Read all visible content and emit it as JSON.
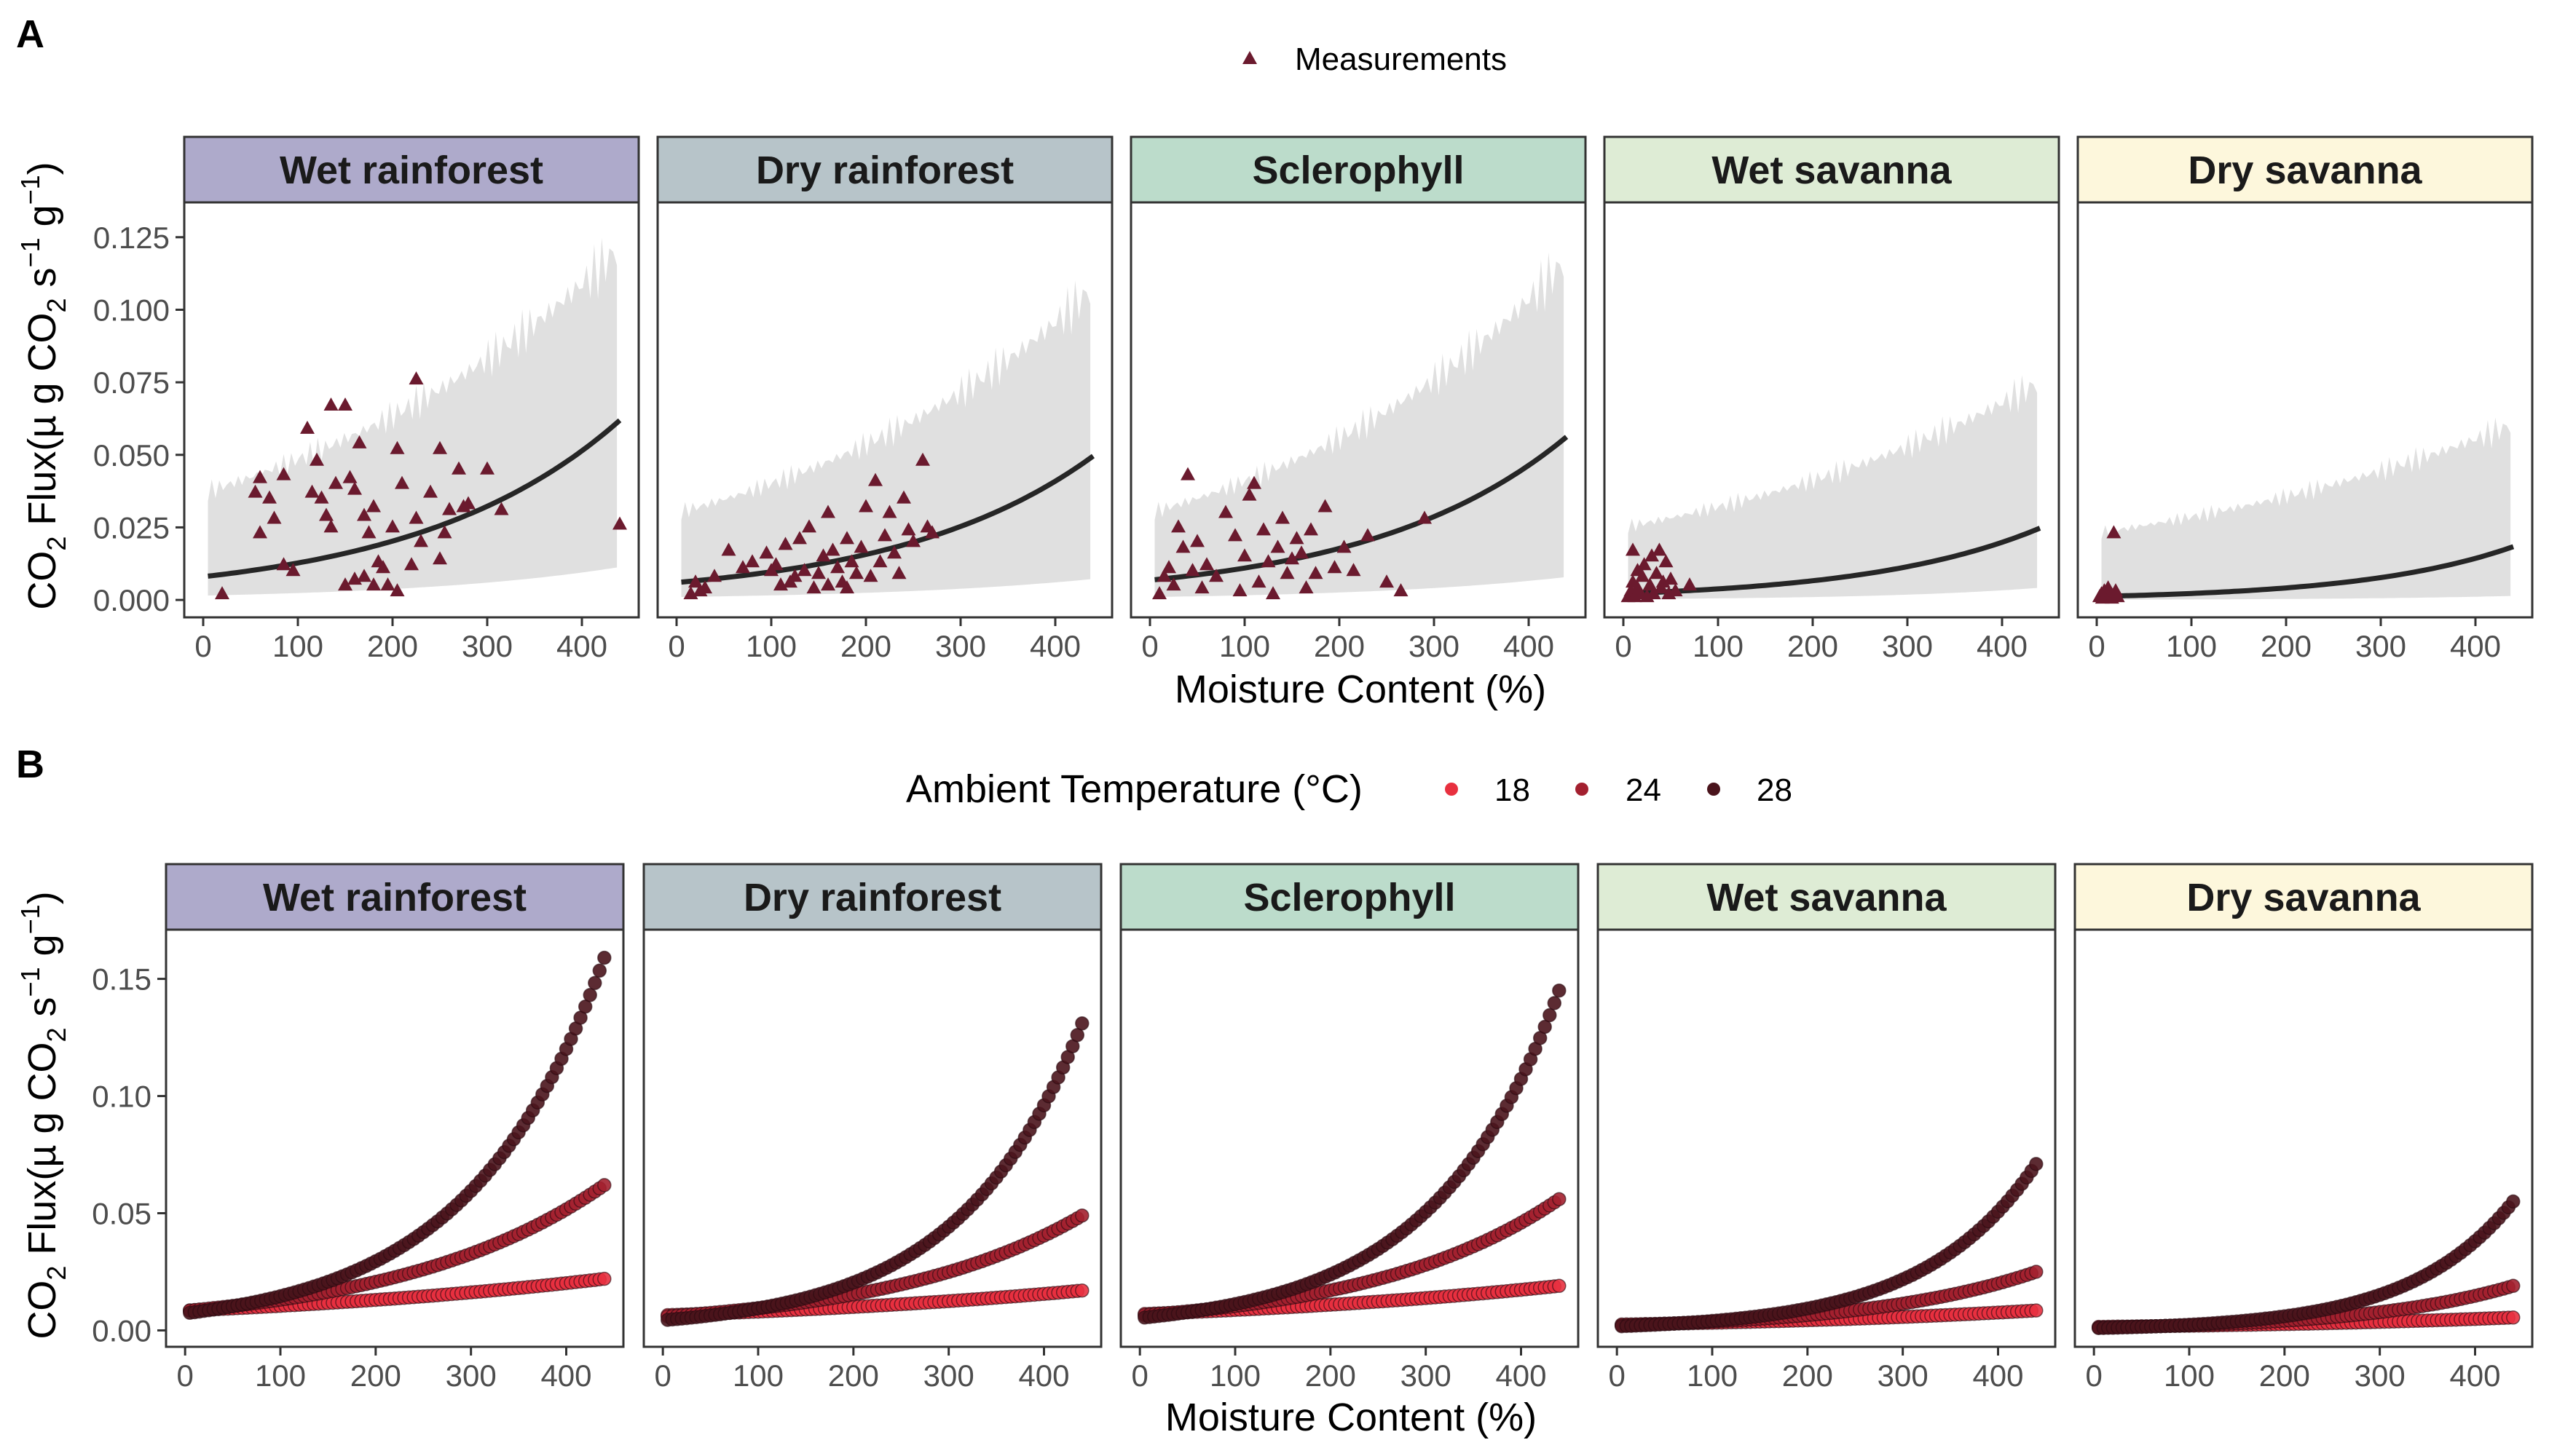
{
  "figure": {
    "panel_a_letter": "A",
    "panel_b_letter": "B"
  },
  "legend_a": {
    "label": "Measurements"
  },
  "legend_b": {
    "title": "Ambient Temperature (°C)",
    "items": [
      {
        "label": "18",
        "color": "#e8303f"
      },
      {
        "label": "24",
        "color": "#a3202f"
      },
      {
        "label": "28",
        "color": "#4a141c"
      }
    ]
  },
  "colors": {
    "measurement": "#6b1a2e",
    "fit_line": "#262626",
    "ribbon": "#e0e0e0",
    "strips": [
      "#aeaacb",
      "#b7c4c9",
      "#bcdccb",
      "#deecd5",
      "#fdf7dc"
    ]
  },
  "chart_data": [
    {
      "type": "scatter",
      "panel": "A",
      "xlabel": "Moisture Content (%)",
      "ylabel": "CO2 Flux(µ g CO2 s-1 g-1)",
      "ylabel_parts": {
        "a": "CO",
        "b": "2",
        "c": " Flux(µ g CO",
        "d": "2",
        "e": " s",
        "f": "−1",
        "g": " g",
        "h": "−1",
        "i": ")"
      },
      "xlim": [
        -20,
        460
      ],
      "ylim": [
        -0.006,
        0.137
      ],
      "x_ticks": [
        0,
        100,
        200,
        300,
        400
      ],
      "x_tick_labels": [
        "0",
        "100",
        "200",
        "300",
        "400"
      ],
      "y_ticks": [
        0,
        0.025,
        0.05,
        0.075,
        0.1,
        0.125
      ],
      "y_tick_labels": [
        "0.000",
        "0.025",
        "0.050",
        "0.075",
        "0.100",
        "0.125"
      ],
      "facets": [
        {
          "name": "Wet rainforest",
          "fit": {
            "a": 0.008,
            "b": 0.00465
          },
          "ribbon_low": {
            "a": 0.0015,
            "b": 0.0046
          },
          "ribbon_high": {
            "a": 0.037,
            "b": 0.0027
          },
          "points": [
            [
              20,
              0.002
            ],
            [
              55,
              0.037
            ],
            [
              60,
              0.042
            ],
            [
              60,
              0.023
            ],
            [
              70,
              0.035
            ],
            [
              75,
              0.028
            ],
            [
              85,
              0.043
            ],
            [
              85,
              0.012
            ],
            [
              95,
              0.01
            ],
            [
              110,
              0.059
            ],
            [
              115,
              0.037
            ],
            [
              120,
              0.048
            ],
            [
              125,
              0.035
            ],
            [
              130,
              0.029
            ],
            [
              135,
              0.067
            ],
            [
              135,
              0.025
            ],
            [
              140,
              0.04
            ],
            [
              150,
              0.067
            ],
            [
              150,
              0.005
            ],
            [
              155,
              0.042
            ],
            [
              160,
              0.038
            ],
            [
              160,
              0.007
            ],
            [
              165,
              0.054
            ],
            [
              170,
              0.029
            ],
            [
              170,
              0.008
            ],
            [
              175,
              0.023
            ],
            [
              180,
              0.032
            ],
            [
              180,
              0.005
            ],
            [
              185,
              0.013
            ],
            [
              190,
              0.011
            ],
            [
              195,
              0.005
            ],
            [
              200,
              0.025
            ],
            [
              205,
              0.052
            ],
            [
              205,
              0.003
            ],
            [
              210,
              0.04
            ],
            [
              220,
              0.012
            ],
            [
              225,
              0.076
            ],
            [
              225,
              0.028
            ],
            [
              230,
              0.02
            ],
            [
              240,
              0.037
            ],
            [
              250,
              0.052
            ],
            [
              250,
              0.014
            ],
            [
              255,
              0.023
            ],
            [
              260,
              0.031
            ],
            [
              270,
              0.045
            ],
            [
              275,
              0.032
            ],
            [
              280,
              0.033
            ],
            [
              300,
              0.045
            ],
            [
              315,
              0.031
            ],
            [
              440,
              0.026
            ]
          ]
        },
        {
          "name": "Dry rainforest",
          "fit": {
            "a": 0.006,
            "b": 0.0048
          },
          "ribbon_low": {
            "a": 0.001,
            "b": 0.0045
          },
          "ribbon_high": {
            "a": 0.03,
            "b": 0.0029
          },
          "points": [
            [
              15,
              0.002
            ],
            [
              20,
              0.006
            ],
            [
              25,
              0.003
            ],
            [
              30,
              0.004
            ],
            [
              40,
              0.008
            ],
            [
              55,
              0.017
            ],
            [
              70,
              0.011
            ],
            [
              80,
              0.013
            ],
            [
              95,
              0.016
            ],
            [
              100,
              0.01
            ],
            [
              105,
              0.012
            ],
            [
              110,
              0.005
            ],
            [
              115,
              0.019
            ],
            [
              120,
              0.006
            ],
            [
              125,
              0.008
            ],
            [
              130,
              0.021
            ],
            [
              135,
              0.01
            ],
            [
              140,
              0.025
            ],
            [
              145,
              0.004
            ],
            [
              150,
              0.009
            ],
            [
              155,
              0.015
            ],
            [
              160,
              0.03
            ],
            [
              160,
              0.005
            ],
            [
              165,
              0.017
            ],
            [
              170,
              0.011
            ],
            [
              175,
              0.006
            ],
            [
              180,
              0.021
            ],
            [
              180,
              0.004
            ],
            [
              185,
              0.013
            ],
            [
              190,
              0.009
            ],
            [
              195,
              0.018
            ],
            [
              200,
              0.032
            ],
            [
              205,
              0.008
            ],
            [
              210,
              0.041
            ],
            [
              215,
              0.013
            ],
            [
              220,
              0.022
            ],
            [
              225,
              0.03
            ],
            [
              230,
              0.016
            ],
            [
              235,
              0.009
            ],
            [
              240,
              0.035
            ],
            [
              245,
              0.024
            ],
            [
              250,
              0.02
            ],
            [
              260,
              0.048
            ],
            [
              265,
              0.025
            ],
            [
              270,
              0.023
            ]
          ]
        },
        {
          "name": "Sclerophyll",
          "fit": {
            "a": 0.0068,
            "b": 0.0048
          },
          "ribbon_low": {
            "a": 0.001,
            "b": 0.0047
          },
          "ribbon_high": {
            "a": 0.03,
            "b": 0.0031
          },
          "points": [
            [
              10,
              0.002
            ],
            [
              15,
              0.008
            ],
            [
              20,
              0.011
            ],
            [
              25,
              0.005
            ],
            [
              30,
              0.025
            ],
            [
              35,
              0.018
            ],
            [
              40,
              0.043
            ],
            [
              45,
              0.01
            ],
            [
              50,
              0.02
            ],
            [
              55,
              0.004
            ],
            [
              60,
              0.012
            ],
            [
              70,
              0.008
            ],
            [
              80,
              0.03
            ],
            [
              90,
              0.022
            ],
            [
              95,
              0.003
            ],
            [
              100,
              0.015
            ],
            [
              105,
              0.036
            ],
            [
              110,
              0.04
            ],
            [
              115,
              0.006
            ],
            [
              120,
              0.024
            ],
            [
              125,
              0.013
            ],
            [
              130,
              0.002
            ],
            [
              135,
              0.018
            ],
            [
              140,
              0.028
            ],
            [
              145,
              0.009
            ],
            [
              150,
              0.014
            ],
            [
              155,
              0.021
            ],
            [
              160,
              0.016
            ],
            [
              165,
              0.004
            ],
            [
              170,
              0.024
            ],
            [
              175,
              0.009
            ],
            [
              185,
              0.032
            ],
            [
              195,
              0.011
            ],
            [
              205,
              0.018
            ],
            [
              215,
              0.01
            ],
            [
              230,
              0.022
            ],
            [
              250,
              0.006
            ],
            [
              265,
              0.003
            ],
            [
              290,
              0.028
            ]
          ]
        },
        {
          "name": "Wet savanna",
          "fit": {
            "a": 0.0022,
            "b": 0.0055
          },
          "ribbon_low": {
            "a": 0.0003,
            "b": 0.006
          },
          "ribbon_high": {
            "a": 0.025,
            "b": 0.0025
          },
          "points": [
            [
              5,
              0.001
            ],
            [
              8,
              0.003
            ],
            [
              10,
              0.006
            ],
            [
              10,
              0.017
            ],
            [
              12,
              0.001
            ],
            [
              15,
              0.01
            ],
            [
              15,
              0.004
            ],
            [
              18,
              0.002
            ],
            [
              20,
              0.008
            ],
            [
              22,
              0.012
            ],
            [
              25,
              0.001
            ],
            [
              28,
              0.005
            ],
            [
              30,
              0.015
            ],
            [
              32,
              0.002
            ],
            [
              35,
              0.009
            ],
            [
              38,
              0.017
            ],
            [
              40,
              0.004
            ],
            [
              42,
              0.006
            ],
            [
              45,
              0.013
            ],
            [
              48,
              0.002
            ],
            [
              50,
              0.007
            ],
            [
              55,
              0.003
            ],
            [
              70,
              0.005
            ]
          ]
        },
        {
          "name": "Dry savanna",
          "fit": {
            "a": 0.0012,
            "b": 0.0062
          },
          "ribbon_low": {
            "a": 0.0001,
            "b": 0.006
          },
          "ribbon_high": {
            "a": 0.023,
            "b": 0.0022
          },
          "points": [
            [
              3,
              0.001
            ],
            [
              5,
              0.002
            ],
            [
              6,
              0.0005
            ],
            [
              8,
              0.003
            ],
            [
              9,
              0.001
            ],
            [
              10,
              0.0015
            ],
            [
              12,
              0.004
            ],
            [
              13,
              0.001
            ],
            [
              15,
              0.002
            ],
            [
              16,
              0.0005
            ],
            [
              18,
              0.023
            ],
            [
              20,
              0.003
            ],
            [
              22,
              0.001
            ]
          ]
        }
      ]
    },
    {
      "type": "scatter",
      "panel": "B",
      "xlabel": "Moisture Content (%)",
      "ylabel": "CO2 Flux(µ g CO2 s-1 g-1)",
      "xlim": [
        -20,
        460
      ],
      "ylim": [
        -0.007,
        0.171
      ],
      "x_ticks": [
        0,
        100,
        200,
        300,
        400
      ],
      "x_tick_labels": [
        "0",
        "100",
        "200",
        "300",
        "400"
      ],
      "y_ticks": [
        0,
        0.05,
        0.1,
        0.15
      ],
      "y_tick_labels": [
        "0.00",
        "0.05",
        "0.10",
        "0.15"
      ],
      "series": [
        {
          "name": "18",
          "color": "#e8303f"
        },
        {
          "name": "24",
          "color": "#a3202f"
        },
        {
          "name": "28",
          "color": "#4a141c"
        }
      ],
      "curve_x_range": [
        5,
        440
      ],
      "facets": [
        {
          "name": "Wet rainforest",
          "curves": [
            {
              "series": "18",
              "start": 0.0085,
              "end": 0.022
            },
            {
              "series": "24",
              "start": 0.0085,
              "end": 0.062
            },
            {
              "series": "28",
              "start": 0.0075,
              "end": 0.159
            }
          ]
        },
        {
          "name": "Dry rainforest",
          "curves": [
            {
              "series": "18",
              "start": 0.0065,
              "end": 0.017
            },
            {
              "series": "24",
              "start": 0.006,
              "end": 0.049
            },
            {
              "series": "28",
              "start": 0.0045,
              "end": 0.131
            }
          ]
        },
        {
          "name": "Sclerophyll",
          "curves": [
            {
              "series": "18",
              "start": 0.007,
              "end": 0.019
            },
            {
              "series": "24",
              "start": 0.0065,
              "end": 0.056
            },
            {
              "series": "28",
              "start": 0.0055,
              "end": 0.145
            }
          ]
        },
        {
          "name": "Wet savanna",
          "curves": [
            {
              "series": "18",
              "start": 0.0025,
              "end": 0.0085
            },
            {
              "series": "24",
              "start": 0.0022,
              "end": 0.025
            },
            {
              "series": "28",
              "start": 0.0018,
              "end": 0.071
            }
          ]
        },
        {
          "name": "Dry savanna",
          "curves": [
            {
              "series": "18",
              "start": 0.0015,
              "end": 0.0055
            },
            {
              "series": "24",
              "start": 0.0012,
              "end": 0.019
            },
            {
              "series": "28",
              "start": 0.001,
              "end": 0.055
            }
          ]
        }
      ]
    }
  ]
}
